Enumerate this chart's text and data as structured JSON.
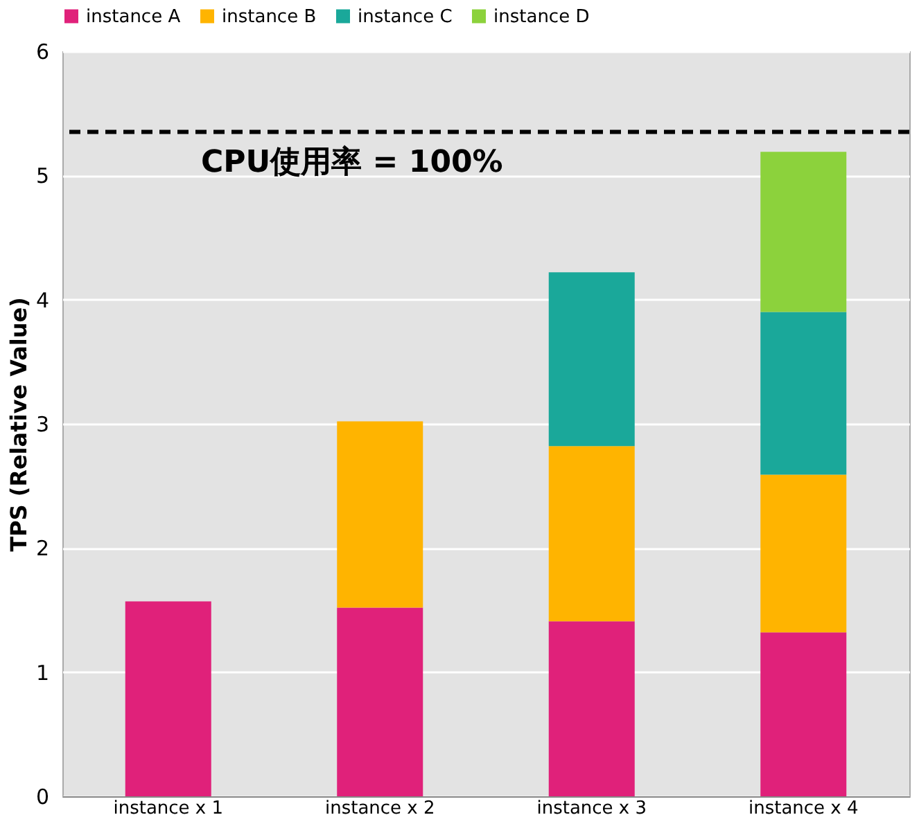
{
  "chart_data": {
    "type": "bar",
    "stacked": true,
    "ylabel": "TPS (Relative Value)",
    "categories": [
      "instance x 1",
      "instance x 2",
      "instance x 3",
      "instance x 4"
    ],
    "series": [
      {
        "name": "instance A",
        "color": "#e0217a",
        "values": [
          1.57,
          1.52,
          1.41,
          1.32
        ]
      },
      {
        "name": "instance B",
        "color": "#ffb400",
        "values": [
          null,
          1.5,
          1.41,
          1.27
        ]
      },
      {
        "name": "instance C",
        "color": "#1aa89a",
        "values": [
          null,
          null,
          1.4,
          1.31
        ]
      },
      {
        "name": "instance D",
        "color": "#8cd23c",
        "values": [
          null,
          null,
          null,
          1.29
        ]
      }
    ],
    "ylim": [
      0,
      6
    ],
    "yticks": [
      0,
      1,
      2,
      3,
      4,
      5,
      6
    ],
    "grid": "y",
    "legend": "top",
    "ref_lines": [
      {
        "axis": "y",
        "value": 5.35,
        "color": "#000000",
        "line_style": "dashed"
      }
    ],
    "annotations": [
      "CPU使用率 = 100%"
    ]
  }
}
